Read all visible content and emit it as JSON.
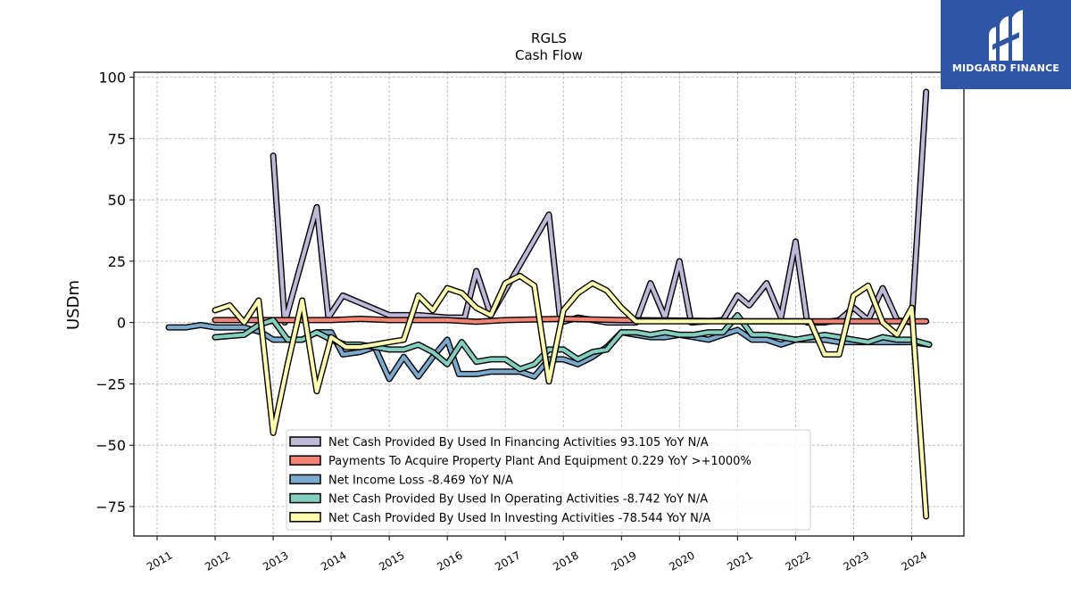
{
  "chart_data": {
    "type": "line",
    "title": "RGLS",
    "subtitle": "Cash Flow",
    "ylabel": "USDm",
    "xlabel": "",
    "ylim": [
      -87,
      102
    ],
    "xlim": [
      2010.6,
      2024.9
    ],
    "yticks": [
      100,
      75,
      50,
      25,
      0,
      -25,
      -50,
      -75
    ],
    "ytick_labels": [
      "100",
      "75",
      "50",
      "25",
      "0",
      "−25",
      "−50",
      "−75"
    ],
    "xticks": [
      2011,
      2012,
      2013,
      2014,
      2015,
      2016,
      2017,
      2018,
      2019,
      2020,
      2021,
      2022,
      2023,
      2024
    ],
    "xtick_labels": [
      "2011",
      "2012",
      "2013",
      "2014",
      "2015",
      "2016",
      "2017",
      "2018",
      "2019",
      "2020",
      "2021",
      "2022",
      "2023",
      "2024"
    ],
    "grid": true,
    "legend_position": "lower-center",
    "series": [
      {
        "name": "Net Cash Provided By Used In Financing Activities  93.105 YoY N/A",
        "color": "#bcb9d9",
        "points": [
          [
            2013.0,
            68
          ],
          [
            2013.2,
            0
          ],
          [
            2013.75,
            47
          ],
          [
            2013.95,
            2
          ],
          [
            2014.2,
            11
          ],
          [
            2015.0,
            3
          ],
          [
            2015.5,
            3
          ],
          [
            2016.0,
            2
          ],
          [
            2016.3,
            2
          ],
          [
            2016.5,
            21
          ],
          [
            2016.75,
            3
          ],
          [
            2017.75,
            44
          ],
          [
            2017.95,
            0
          ],
          [
            2018.25,
            2
          ],
          [
            2018.75,
            0
          ],
          [
            2019.25,
            0
          ],
          [
            2019.5,
            16
          ],
          [
            2019.75,
            2
          ],
          [
            2020.0,
            25
          ],
          [
            2020.2,
            0
          ],
          [
            2020.75,
            1
          ],
          [
            2021.0,
            11
          ],
          [
            2021.2,
            7
          ],
          [
            2021.5,
            16
          ],
          [
            2021.75,
            2
          ],
          [
            2022.0,
            33
          ],
          [
            2022.2,
            0
          ],
          [
            2022.5,
            0
          ],
          [
            2022.75,
            1
          ],
          [
            2023.0,
            6
          ],
          [
            2023.25,
            1
          ],
          [
            2023.5,
            14
          ],
          [
            2023.75,
            1
          ],
          [
            2024.0,
            0
          ],
          [
            2024.25,
            94
          ]
        ]
      },
      {
        "name": "Payments To Acquire Property Plant And Equipment  0.229 YoY >+1000%",
        "color": "#f38373",
        "points": [
          [
            2012.0,
            1
          ],
          [
            2012.75,
            1
          ],
          [
            2013.25,
            1
          ],
          [
            2014.0,
            1
          ],
          [
            2014.5,
            1.5
          ],
          [
            2015.0,
            1
          ],
          [
            2016.0,
            1
          ],
          [
            2016.5,
            0.3
          ],
          [
            2017.0,
            1
          ],
          [
            2018.0,
            1.5
          ],
          [
            2019.0,
            1
          ],
          [
            2020.0,
            0.8
          ],
          [
            2021.0,
            0.5
          ],
          [
            2022.0,
            0.5
          ],
          [
            2023.0,
            0.5
          ],
          [
            2024.25,
            0.5
          ]
        ]
      },
      {
        "name": "Net Income Loss  -8.469 YoY N/A",
        "color": "#7aaacd",
        "points": [
          [
            2011.2,
            -2
          ],
          [
            2011.5,
            -2
          ],
          [
            2011.75,
            -1
          ],
          [
            2012.0,
            -2
          ],
          [
            2012.5,
            -2
          ],
          [
            2012.8,
            -4
          ],
          [
            2013.0,
            -7
          ],
          [
            2013.25,
            -7
          ],
          [
            2013.5,
            -7
          ],
          [
            2013.75,
            -4
          ],
          [
            2014.0,
            -4
          ],
          [
            2014.2,
            -13
          ],
          [
            2014.5,
            -12
          ],
          [
            2014.75,
            -10
          ],
          [
            2015.0,
            -23
          ],
          [
            2015.25,
            -14
          ],
          [
            2015.5,
            -22
          ],
          [
            2015.75,
            -14
          ],
          [
            2016.0,
            -7
          ],
          [
            2016.2,
            -21
          ],
          [
            2016.5,
            -21
          ],
          [
            2016.75,
            -20
          ],
          [
            2017.25,
            -20
          ],
          [
            2017.5,
            -22
          ],
          [
            2017.75,
            -15
          ],
          [
            2018.0,
            -15
          ],
          [
            2018.25,
            -17
          ],
          [
            2018.5,
            -14
          ],
          [
            2018.75,
            -10
          ],
          [
            2019.0,
            -4
          ],
          [
            2019.25,
            -5
          ],
          [
            2019.5,
            -6
          ],
          [
            2019.75,
            -6
          ],
          [
            2020.0,
            -5
          ],
          [
            2020.25,
            -6
          ],
          [
            2020.5,
            -7
          ],
          [
            2020.75,
            -5
          ],
          [
            2021.0,
            -3
          ],
          [
            2021.25,
            -7
          ],
          [
            2021.5,
            -7
          ],
          [
            2021.75,
            -9
          ],
          [
            2022.0,
            -7
          ],
          [
            2022.25,
            -7
          ],
          [
            2022.5,
            -7
          ],
          [
            2022.75,
            -8
          ],
          [
            2023.0,
            -8
          ],
          [
            2023.25,
            -8
          ],
          [
            2023.5,
            -8
          ],
          [
            2023.75,
            -8
          ],
          [
            2024.0,
            -8
          ],
          [
            2024.3,
            -9
          ]
        ]
      },
      {
        "name": "Net Cash Provided By Used In Operating Activities  -8.742 YoY N/A",
        "color": "#82cebf",
        "points": [
          [
            2012.0,
            -6
          ],
          [
            2012.5,
            -5
          ],
          [
            2012.75,
            -1
          ],
          [
            2013.0,
            1
          ],
          [
            2013.25,
            -7
          ],
          [
            2013.5,
            -7
          ],
          [
            2013.75,
            -4
          ],
          [
            2014.0,
            -7
          ],
          [
            2014.25,
            -9
          ],
          [
            2014.5,
            -9
          ],
          [
            2014.75,
            -10
          ],
          [
            2015.0,
            -11
          ],
          [
            2015.25,
            -11
          ],
          [
            2015.5,
            -9
          ],
          [
            2015.75,
            -12
          ],
          [
            2016.0,
            -17
          ],
          [
            2016.25,
            -8
          ],
          [
            2016.5,
            -16
          ],
          [
            2016.75,
            -15
          ],
          [
            2017.0,
            -15
          ],
          [
            2017.25,
            -19
          ],
          [
            2017.5,
            -17
          ],
          [
            2017.75,
            -11
          ],
          [
            2018.0,
            -11
          ],
          [
            2018.25,
            -15
          ],
          [
            2018.5,
            -12
          ],
          [
            2018.75,
            -11
          ],
          [
            2019.0,
            -4
          ],
          [
            2019.25,
            -4
          ],
          [
            2019.5,
            -5
          ],
          [
            2019.75,
            -4
          ],
          [
            2020.0,
            -5
          ],
          [
            2020.25,
            -5
          ],
          [
            2020.5,
            -4
          ],
          [
            2020.75,
            -4
          ],
          [
            2021.0,
            3
          ],
          [
            2021.25,
            -5
          ],
          [
            2021.5,
            -5
          ],
          [
            2021.75,
            -6
          ],
          [
            2022.0,
            -7
          ],
          [
            2022.25,
            -6
          ],
          [
            2022.5,
            -5
          ],
          [
            2022.75,
            -6
          ],
          [
            2023.0,
            -7
          ],
          [
            2023.25,
            -8
          ],
          [
            2023.5,
            -6
          ],
          [
            2023.75,
            -7
          ],
          [
            2024.0,
            -7
          ],
          [
            2024.3,
            -9
          ]
        ]
      },
      {
        "name": "Net Cash Provided By Used In Investing Activities  -78.544 YoY N/A",
        "color": "#fdfdad",
        "points": [
          [
            2012.0,
            5
          ],
          [
            2012.25,
            7
          ],
          [
            2012.5,
            0
          ],
          [
            2012.75,
            9
          ],
          [
            2013.0,
            -45
          ],
          [
            2013.25,
            -17
          ],
          [
            2013.5,
            9
          ],
          [
            2013.75,
            -28
          ],
          [
            2014.0,
            -6
          ],
          [
            2014.25,
            -10
          ],
          [
            2014.5,
            -10
          ],
          [
            2014.75,
            -9
          ],
          [
            2015.0,
            -8
          ],
          [
            2015.25,
            -7
          ],
          [
            2015.5,
            11
          ],
          [
            2015.75,
            5
          ],
          [
            2016.0,
            14
          ],
          [
            2016.25,
            12
          ],
          [
            2016.5,
            6
          ],
          [
            2016.75,
            3
          ],
          [
            2017.0,
            16
          ],
          [
            2017.25,
            19
          ],
          [
            2017.5,
            15
          ],
          [
            2017.75,
            -24
          ],
          [
            2018.0,
            5
          ],
          [
            2018.25,
            12
          ],
          [
            2018.5,
            16
          ],
          [
            2018.75,
            13
          ],
          [
            2019.0,
            6
          ],
          [
            2019.25,
            0.5
          ],
          [
            2019.5,
            0.5
          ],
          [
            2019.75,
            0.5
          ],
          [
            2020.0,
            0.5
          ],
          [
            2020.25,
            0.5
          ],
          [
            2020.5,
            0.5
          ],
          [
            2020.75,
            0.5
          ],
          [
            2021.0,
            0.5
          ],
          [
            2021.25,
            0.5
          ],
          [
            2021.5,
            0.5
          ],
          [
            2021.75,
            0.5
          ],
          [
            2022.0,
            0.5
          ],
          [
            2022.25,
            0.5
          ],
          [
            2022.5,
            -13
          ],
          [
            2022.75,
            -13
          ],
          [
            2023.0,
            11
          ],
          [
            2023.25,
            15
          ],
          [
            2023.5,
            0
          ],
          [
            2023.75,
            -5
          ],
          [
            2024.0,
            6
          ],
          [
            2024.25,
            -79
          ]
        ]
      }
    ]
  },
  "brand": {
    "name": "MIDGARD FINANCE",
    "background": "#2f55a7"
  }
}
